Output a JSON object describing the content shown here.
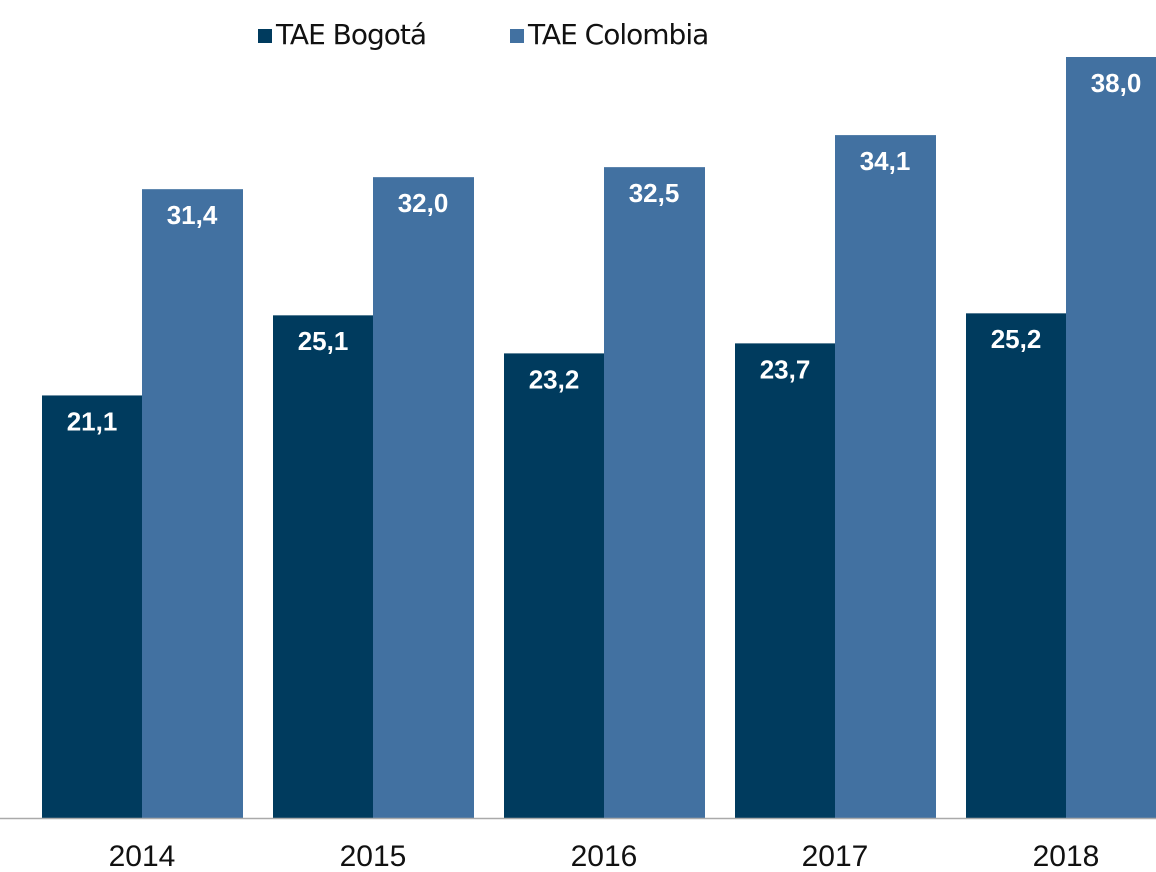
{
  "chart_data": {
    "type": "bar",
    "categories": [
      "2014",
      "2015",
      "2016",
      "2017",
      "2018"
    ],
    "series": [
      {
        "name": "TAE Bogotá",
        "color": "#003b5e",
        "values": [
          21.1,
          25.1,
          23.2,
          23.7,
          25.2
        ],
        "value_labels": [
          "21,1",
          "25,1",
          "23,2",
          "23,7",
          "25,2"
        ]
      },
      {
        "name": "TAE Colombia",
        "color": "#4271a1",
        "values": [
          31.4,
          32.0,
          32.5,
          34.1,
          38.0
        ],
        "value_labels": [
          "31,4",
          "32,0",
          "32,5",
          "34,1",
          "38,0"
        ]
      }
    ],
    "legend": "top"
  }
}
